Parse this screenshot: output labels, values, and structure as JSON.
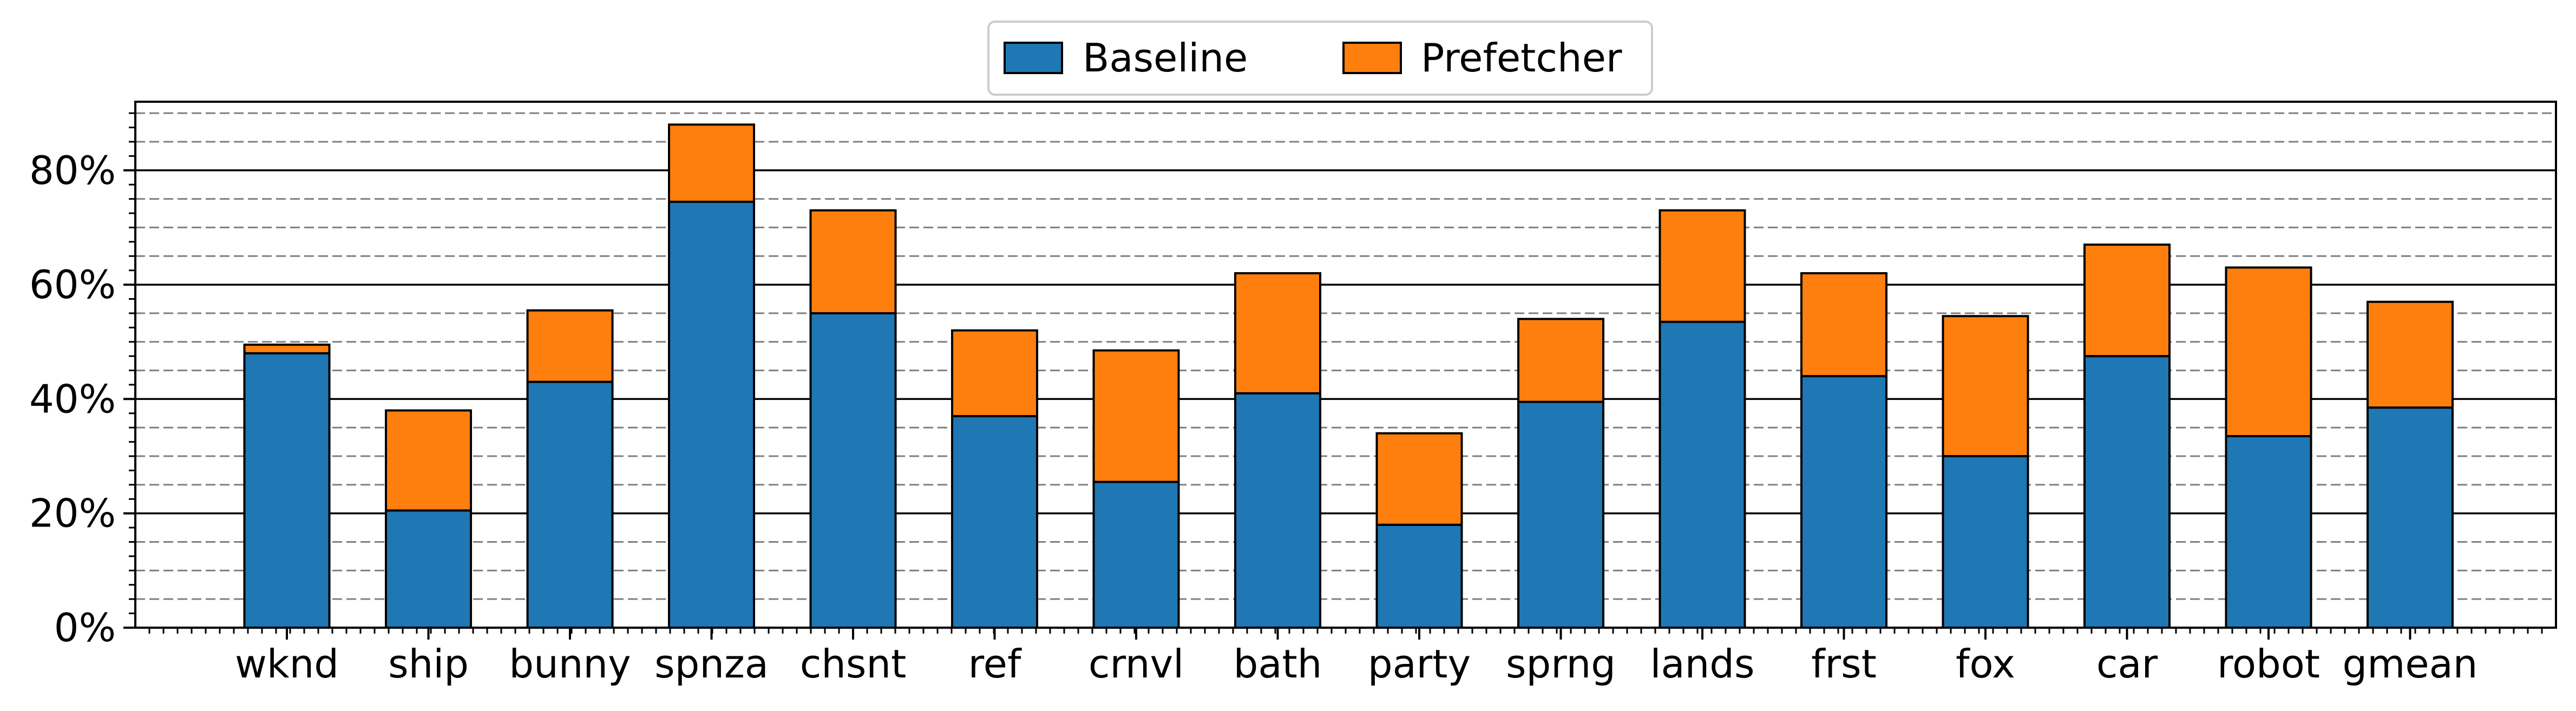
{
  "chart_data": {
    "type": "bar",
    "stacked": true,
    "categories": [
      "wknd",
      "ship",
      "bunny",
      "spnza",
      "chsnt",
      "ref",
      "crnvl",
      "bath",
      "party",
      "sprng",
      "lands",
      "frst",
      "fox",
      "car",
      "robot",
      "gmean"
    ],
    "series": [
      {
        "name": "Baseline",
        "color": "#1f77b4",
        "values": [
          48,
          20.5,
          43,
          74.5,
          55,
          37,
          25.5,
          41,
          18,
          39.5,
          53.5,
          44,
          30,
          47.5,
          33.5,
          38.5
        ]
      },
      {
        "name": "Prefetcher",
        "color": "#ff7f0e",
        "values": [
          1.5,
          17.5,
          12.5,
          13.5,
          18,
          15,
          23,
          21,
          16,
          14.5,
          19.5,
          18,
          24.5,
          19.5,
          29.5,
          18.5
        ]
      }
    ],
    "totals": [
      49.5,
      38,
      55.5,
      88,
      73,
      52,
      48.5,
      62,
      34,
      54,
      73,
      62,
      54.5,
      67,
      63,
      57
    ],
    "title": "",
    "xlabel": "",
    "ylabel": "",
    "ylim": [
      0,
      92
    ],
    "yticks": [
      0,
      20,
      40,
      60,
      80
    ],
    "ytick_labels": [
      "0%",
      "20%",
      "40%",
      "60%",
      "80%"
    ],
    "grid": {
      "major": "solid",
      "minor": "dashed",
      "minor_step": 5
    },
    "legend": {
      "position": "top-center",
      "columns": 2,
      "entries": [
        "Baseline",
        "Prefetcher"
      ]
    }
  }
}
